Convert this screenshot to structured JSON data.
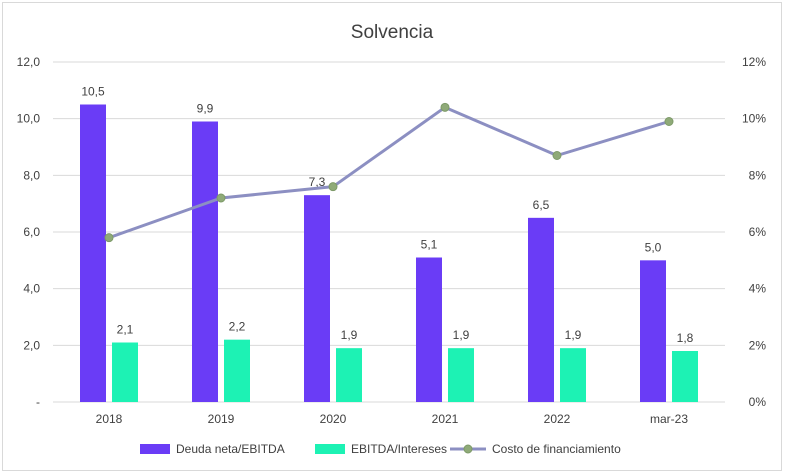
{
  "chart_data": {
    "type": "bar",
    "title": "Solvencia",
    "categories": [
      "2018",
      "2019",
      "2020",
      "2021",
      "2022",
      "mar-23"
    ],
    "series": [
      {
        "name": "Deuda neta/EBITDA",
        "type": "bar",
        "axis": "left",
        "values": [
          10.5,
          9.9,
          7.3,
          5.1,
          6.5,
          5.0
        ],
        "labels": [
          "10,5",
          "9,9",
          "7,3",
          "5,1",
          "6,5",
          "5,0"
        ],
        "color": "#6a3cf6"
      },
      {
        "name": "EBITDA/Intereses",
        "type": "bar",
        "axis": "left",
        "values": [
          2.1,
          2.2,
          1.9,
          1.9,
          1.9,
          1.8
        ],
        "labels": [
          "2,1",
          "2,2",
          "1,9",
          "1,9",
          "1,9",
          "1,8"
        ],
        "color": "#1df2b4"
      },
      {
        "name": "Costo de financiamiento",
        "type": "line",
        "axis": "right",
        "values": [
          5.8,
          7.2,
          7.6,
          10.4,
          8.7,
          9.9
        ],
        "color": "#8c8fc2",
        "marker_color": "#8faa78"
      }
    ],
    "y_left": {
      "min": 0,
      "max": 12,
      "step": 2,
      "tick_labels": [
        "-",
        "2,0",
        "4,0",
        "6,0",
        "8,0",
        "10,0",
        "12,0"
      ]
    },
    "y_right": {
      "min": 0,
      "max": 12,
      "step": 2,
      "tick_labels": [
        "0%",
        "2%",
        "4%",
        "6%",
        "8%",
        "10%",
        "12%"
      ]
    },
    "grid": true,
    "legend_position": "bottom"
  }
}
